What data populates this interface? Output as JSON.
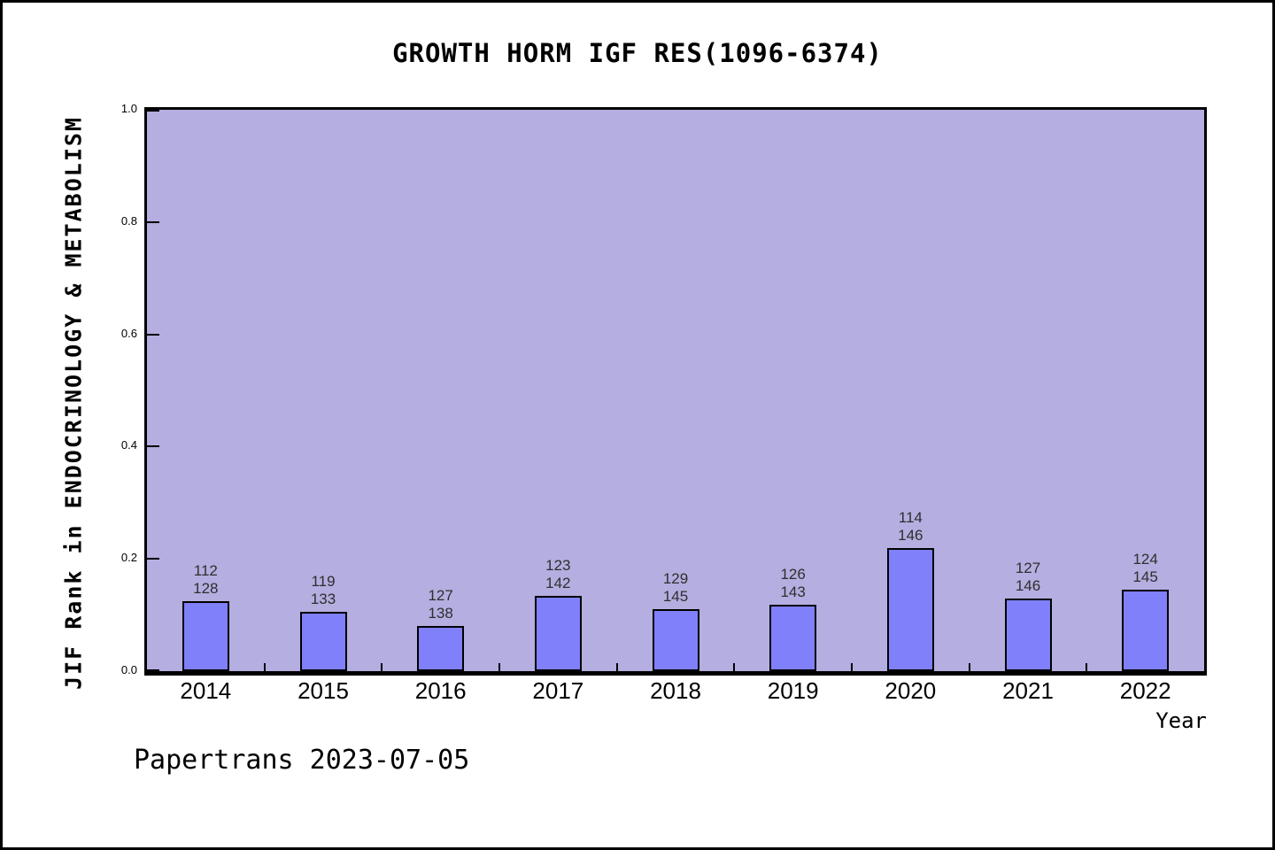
{
  "page": {
    "background": "#ffffff",
    "frame_color": "#000000"
  },
  "chart_data": {
    "type": "bar",
    "title": "GROWTH HORM IGF RES(1096-6374)",
    "xlabel": "Year",
    "ylabel": "JIF Rank in ENDOCRINOLOGY & METABOLISM",
    "footer": "Papertrans 2023-07-05",
    "ylim": [
      0.0,
      1.0
    ],
    "yticks": [
      1.0,
      0.8,
      0.6,
      0.4,
      0.2,
      0.0
    ],
    "grid": false,
    "legend": false,
    "categories": [
      "2014",
      "2015",
      "2016",
      "2017",
      "2018",
      "2019",
      "2020",
      "2021",
      "2022"
    ],
    "bars": [
      {
        "year": "2014",
        "rank": 112,
        "total": 128,
        "value": 0.125
      },
      {
        "year": "2015",
        "rank": 119,
        "total": 133,
        "value": 0.1053
      },
      {
        "year": "2016",
        "rank": 127,
        "total": 138,
        "value": 0.0797
      },
      {
        "year": "2017",
        "rank": 123,
        "total": 142,
        "value": 0.1338
      },
      {
        "year": "2018",
        "rank": 129,
        "total": 145,
        "value": 0.1103
      },
      {
        "year": "2019",
        "rank": 126,
        "total": 143,
        "value": 0.1189
      },
      {
        "year": "2020",
        "rank": 114,
        "total": 146,
        "value": 0.2192
      },
      {
        "year": "2021",
        "rank": 127,
        "total": 146,
        "value": 0.1301
      },
      {
        "year": "2022",
        "rank": 124,
        "total": 145,
        "value": 0.1448
      }
    ],
    "colors": {
      "bar_fill": "#8080fa",
      "bar_border": "#000000",
      "plot_background": "#b5aee0",
      "bar_label_text": "#2e2e2e",
      "axis_text": "#000000"
    }
  }
}
